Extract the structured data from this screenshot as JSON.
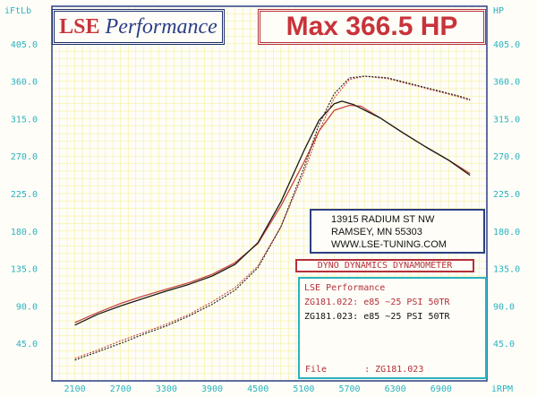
{
  "header": {
    "logo_part1": "LSE",
    "logo_part2": "Performance",
    "max_text": "Max 366.5 HP"
  },
  "address": {
    "line1": "13915 RADIUM ST NW",
    "line2": "RAMSEY, MN 55303",
    "line3": "WWW.LSE-TUNING.COM"
  },
  "dyno_label": "DYNO DYNAMICS DYNAMOMETER",
  "legend": {
    "title": "LSE Performance",
    "run1": "ZG181.022: e85 ~25 PSI 50TR",
    "run2": "ZG181.023: e85 ~25 PSI 50TR",
    "file_label": "File",
    "file_value": ": ZG181.023"
  },
  "colors": {
    "background": "#fefdf8",
    "grid": "#f2ee8c",
    "frame": "#2c3f82",
    "tick_text": "#2ab3bf",
    "run1": "#c8473c",
    "run2": "#1a1a1a"
  },
  "chart_data": {
    "type": "line",
    "left_axis_label": "iFtLb",
    "right_axis_label": "HP",
    "x_unit_label": "iRPM",
    "x_ticks": [
      2100,
      2700,
      3300,
      3900,
      4500,
      5100,
      5700,
      6300,
      6900
    ],
    "y_ticks": [
      "45.0",
      "90.0",
      "135.0",
      "180.0",
      "225.0",
      "270.0",
      "315.0",
      "360.0",
      "405.0"
    ],
    "xlim": [
      1800,
      7500
    ],
    "ylim": [
      0,
      450
    ],
    "grid": true,
    "series": [
      {
        "name": "ZG181.022: e85 ~25 PSI 50TR",
        "kind": "torque",
        "color": "#c8473c",
        "x": [
          2100,
          2400,
          2700,
          3000,
          3300,
          3600,
          3900,
          4200,
          4500,
          4800,
          5100,
          5300,
          5500,
          5700,
          5850,
          6100,
          6400,
          6700,
          7000,
          7280
        ],
        "y": [
          70,
          82,
          93,
          102,
          110,
          118,
          128,
          142,
          165,
          210,
          262,
          300,
          325,
          331,
          330,
          316,
          298,
          281,
          265,
          249
        ]
      },
      {
        "name": "ZG181.023: e85 ~25 PSI 50TR",
        "kind": "torque",
        "color": "#1a1a1a",
        "x": [
          2100,
          2400,
          2700,
          3000,
          3300,
          3600,
          3900,
          4200,
          4500,
          4800,
          5100,
          5300,
          5500,
          5600,
          5750,
          5900,
          6100,
          6400,
          6700,
          7000,
          7280
        ],
        "y": [
          67,
          80,
          90,
          99,
          108,
          116,
          126,
          140,
          166,
          215,
          276,
          313,
          333,
          336,
          332,
          325,
          316,
          298,
          281,
          265,
          247
        ]
      },
      {
        "name": "ZG181.022: e85 ~25 PSI 50TR",
        "kind": "power",
        "color": "#c8473c",
        "x": [
          2100,
          2400,
          2700,
          3000,
          3300,
          3600,
          3900,
          4200,
          4500,
          4800,
          5100,
          5300,
          5500,
          5700,
          5900,
          6200,
          6500,
          6800,
          7100,
          7280
        ],
        "y": [
          27,
          37,
          48,
          58,
          68,
          80,
          95,
          112,
          138,
          185,
          250,
          300,
          340,
          362,
          366,
          363,
          356,
          349,
          342,
          337
        ]
      },
      {
        "name": "ZG181.023: e85 ~25 PSI 50TR",
        "kind": "power",
        "color": "#1a1a1a",
        "x": [
          2100,
          2400,
          2700,
          3000,
          3300,
          3600,
          3900,
          4200,
          4500,
          4800,
          5100,
          5300,
          5500,
          5700,
          5900,
          6200,
          6500,
          6800,
          7100,
          7280
        ],
        "y": [
          25,
          35,
          45,
          56,
          66,
          78,
          92,
          109,
          136,
          185,
          255,
          308,
          345,
          364,
          366,
          364,
          357,
          350,
          343,
          338
        ]
      }
    ]
  }
}
